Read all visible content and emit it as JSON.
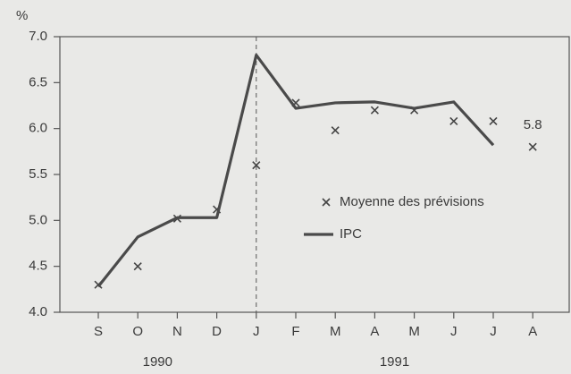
{
  "chart_data": {
    "type": "line",
    "y_unit": "%",
    "categories": [
      "S",
      "O",
      "N",
      "D",
      "J",
      "F",
      "M",
      "A",
      "M",
      "J",
      "J",
      "A"
    ],
    "year_groups": [
      {
        "label": "1990",
        "count": 4
      },
      {
        "label": "1991",
        "count": 8
      }
    ],
    "series": [
      {
        "name": "Moyenne des prévisions",
        "marker": "x",
        "color": "#444444",
        "values": [
          4.3,
          4.5,
          5.02,
          5.12,
          5.6,
          6.28,
          5.98,
          6.2,
          6.2,
          6.08,
          6.08,
          5.8
        ]
      },
      {
        "name": "IPC",
        "marker": "line",
        "color": "#4a4a4a",
        "values": [
          4.28,
          4.82,
          5.03,
          5.03,
          6.8,
          6.22,
          6.28,
          6.29,
          6.22,
          6.29,
          5.82,
          null
        ]
      }
    ],
    "annotations": [
      {
        "text": "5.8"
      }
    ],
    "ylim": [
      4.0,
      7.0
    ],
    "yticks": [
      {
        "value": 4.0,
        "label": "4.0"
      },
      {
        "value": 4.5,
        "label": "4.5"
      },
      {
        "value": 5.0,
        "label": "5.0"
      },
      {
        "value": 5.5,
        "label": "5.5"
      },
      {
        "value": 6.0,
        "label": "6.0"
      },
      {
        "value": 6.5,
        "label": "6.5"
      },
      {
        "value": 7.0,
        "label": "7.0"
      }
    ]
  }
}
